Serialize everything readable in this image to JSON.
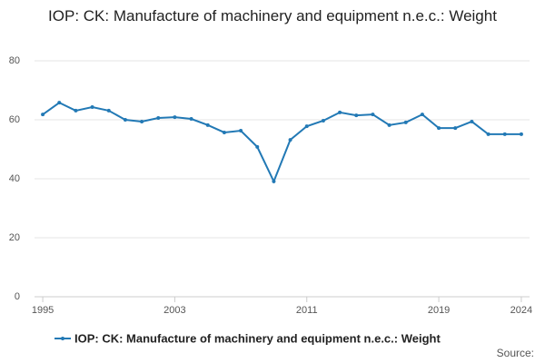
{
  "chart_data": {
    "type": "line",
    "title": "IOP: CK: Manufacture of machinery and equipment n.e.c.: Weight",
    "x": [
      1995,
      1996,
      1997,
      1998,
      1999,
      2000,
      2001,
      2002,
      2003,
      2004,
      2005,
      2006,
      2007,
      2008,
      2009,
      2010,
      2011,
      2012,
      2013,
      2014,
      2015,
      2016,
      2017,
      2018,
      2019,
      2020,
      2021,
      2022,
      2023,
      2024
    ],
    "series": [
      {
        "name": "IOP: CK: Manufacture of machinery and equipment n.e.c.: Weight",
        "color": "#2279b5",
        "values": [
          61.8,
          65.8,
          63.1,
          64.3,
          63.1,
          60.0,
          59.4,
          60.6,
          60.9,
          60.3,
          58.2,
          55.7,
          56.3,
          50.8,
          39.1,
          53.2,
          57.8,
          59.7,
          62.5,
          61.5,
          61.8,
          58.2,
          59.1,
          61.8,
          57.2,
          57.2,
          59.4,
          55.1,
          55.1,
          55.1
        ]
      }
    ],
    "xlim": [
      1994.5,
      2024.5
    ],
    "xticks": [
      1995,
      2003,
      2011,
      2019,
      2024
    ],
    "ylim": [
      0,
      80
    ],
    "yticks": [
      0,
      20,
      40,
      60,
      80
    ],
    "grid": true,
    "source": "Source:"
  }
}
